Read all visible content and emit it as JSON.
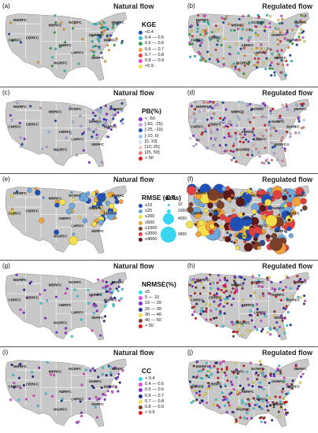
{
  "panels": [
    {
      "left_label": "(a)",
      "right_label": "(b)",
      "left_title": "Natural flow",
      "right_title": "Regulated flow",
      "legend": {
        "title": "KGE",
        "items": [
          {
            "label": "<0.4",
            "color": "#1f4fb8"
          },
          {
            "label": "0.4 — 0.5",
            "color": "#2ec7c9"
          },
          {
            "label": "0.5 — 0.6",
            "color": "#3aa84a"
          },
          {
            "label": "0.6 — 0.7",
            "color": "#f2a23a"
          },
          {
            "label": "0.7 — 0.8",
            "color": "#e34141"
          },
          {
            "label": "0.8 — 0.9",
            "color": "#e64ad6"
          },
          {
            "label": ">0.9",
            "color": "#f4e04a"
          }
        ]
      }
    },
    {
      "left_label": "(c)",
      "right_label": "(d)",
      "left_title": "Natural flow",
      "right_title": "Regulated flow",
      "legend": {
        "title": "PB(%)",
        "items": [
          {
            "label": "< -50",
            "color": "#8a2be2"
          },
          {
            "label": "[-50, -25)",
            "color": "#c8a2e8"
          },
          {
            "label": "[-25, -10)",
            "color": "#1f4fb8"
          },
          {
            "label": "[-10, 0)",
            "color": "#9ec5f0"
          },
          {
            "label": "[0, 10]",
            "color": "#cfe8ff"
          },
          {
            "label": "[10, 25]",
            "color": "#f6c6c6"
          },
          {
            "label": "[25, 50]",
            "color": "#f08080"
          },
          {
            "label": "> 50",
            "color": "#e31a1c"
          }
        ]
      }
    },
    {
      "left_label": "(e)",
      "right_label": "(f)",
      "left_title": "Natural flow",
      "right_title": "Regulated flow",
      "legend": {
        "title": "RMSE (m³/s)",
        "items": [
          {
            "label": "≤10",
            "color": "#1f4fb8"
          },
          {
            "label": "≤25",
            "color": "#6fa8dc"
          },
          {
            "label": "≤200",
            "color": "#f4e04a"
          },
          {
            "label": "≤500",
            "color": "#f2a23a"
          },
          {
            "label": "≤1000",
            "color": "#7b3f2a"
          },
          {
            "label": "≤2000",
            "color": "#e34141"
          },
          {
            "label": "≤4000",
            "color": "#5a1a1a"
          }
        ]
      },
      "da": {
        "title": "DA",
        "values": [
          "10",
          "1000",
          "4000",
          "9900"
        ]
      }
    },
    {
      "left_label": "(g)",
      "right_label": "(h)",
      "left_title": "Natural flow",
      "right_title": "Regulated flow",
      "legend": {
        "title": "NRMSE(%)",
        "items": [
          {
            "label": "≤5",
            "color": "#37d6f0"
          },
          {
            "label": "5 — 10",
            "color": "#e64ad6"
          },
          {
            "label": "10 — 20",
            "color": "#8a2be2"
          },
          {
            "label": "20 — 30",
            "color": "#1f2f8a"
          },
          {
            "label": "30 — 40",
            "color": "#f4e04a"
          },
          {
            "label": "40 — 50",
            "color": "#7b3f2a"
          },
          {
            "label": "> 50",
            "color": "#e31a1c"
          }
        ]
      }
    },
    {
      "left_label": "(i)",
      "right_label": "(j)",
      "left_title": "Natural flow",
      "right_title": "Regulated flow",
      "legend": {
        "title": "CC",
        "items": [
          {
            "label": "< 0.4",
            "color": "#37d6f0"
          },
          {
            "label": "0.4 — 0.5",
            "color": "#e64ad6"
          },
          {
            "label": "0.5 — 0.6",
            "color": "#8a2be2"
          },
          {
            "label": "0.6 — 0.7",
            "color": "#1f2f8a"
          },
          {
            "label": "0.7 — 0.8",
            "color": "#f4e04a"
          },
          {
            "label": "0.8 — 0.9",
            "color": "#7b3f2a"
          },
          {
            "label": "> 0.9",
            "color": "#e31a1c"
          }
        ]
      }
    }
  ],
  "rfc_labels": [
    "NWRFC",
    "CNRFC",
    "MBRFC",
    "NCRFC",
    "NERFC",
    "OHRFC",
    "MARFC",
    "ABRFC",
    "CBRFC",
    "WGRFC",
    "LMRFC",
    "SERFC"
  ],
  "colors": {
    "land": "#c8c8c8",
    "land_stroke": "#ffffff",
    "separator": "#555555"
  }
}
